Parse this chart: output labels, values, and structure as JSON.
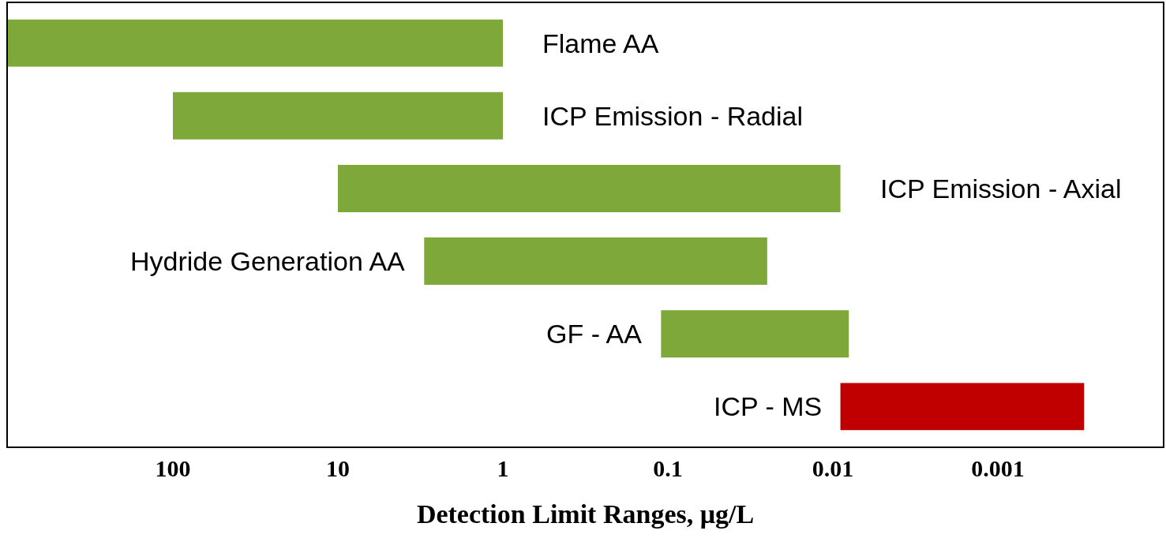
{
  "chart_data": {
    "type": "bar",
    "orientation": "horizontal",
    "xlabel": "Detection Limit Ranges, μg/L",
    "categories": [
      "Flame AA",
      "ICP Emission - Radial",
      "ICP Emission - Axial",
      "Hydride Generation AA",
      "GF - AA",
      "ICP - MS"
    ],
    "base": [
      1,
      1,
      0.009,
      0.025,
      0.008,
      0.0003
    ],
    "values": [
      999,
      99,
      9.991,
      2.975,
      0.102,
      0.0087
    ],
    "colors": [
      "#7fa83a",
      "#7fa83a",
      "#7fa83a",
      "#7fa83a",
      "#7fa83a",
      "#c00000"
    ],
    "log": "x",
    "xlim": [
      1000,
      0.0001
    ],
    "xticks": [
      100,
      10,
      1,
      0.1,
      0.01,
      0.001
    ],
    "tick_labels": "x"
  }
}
